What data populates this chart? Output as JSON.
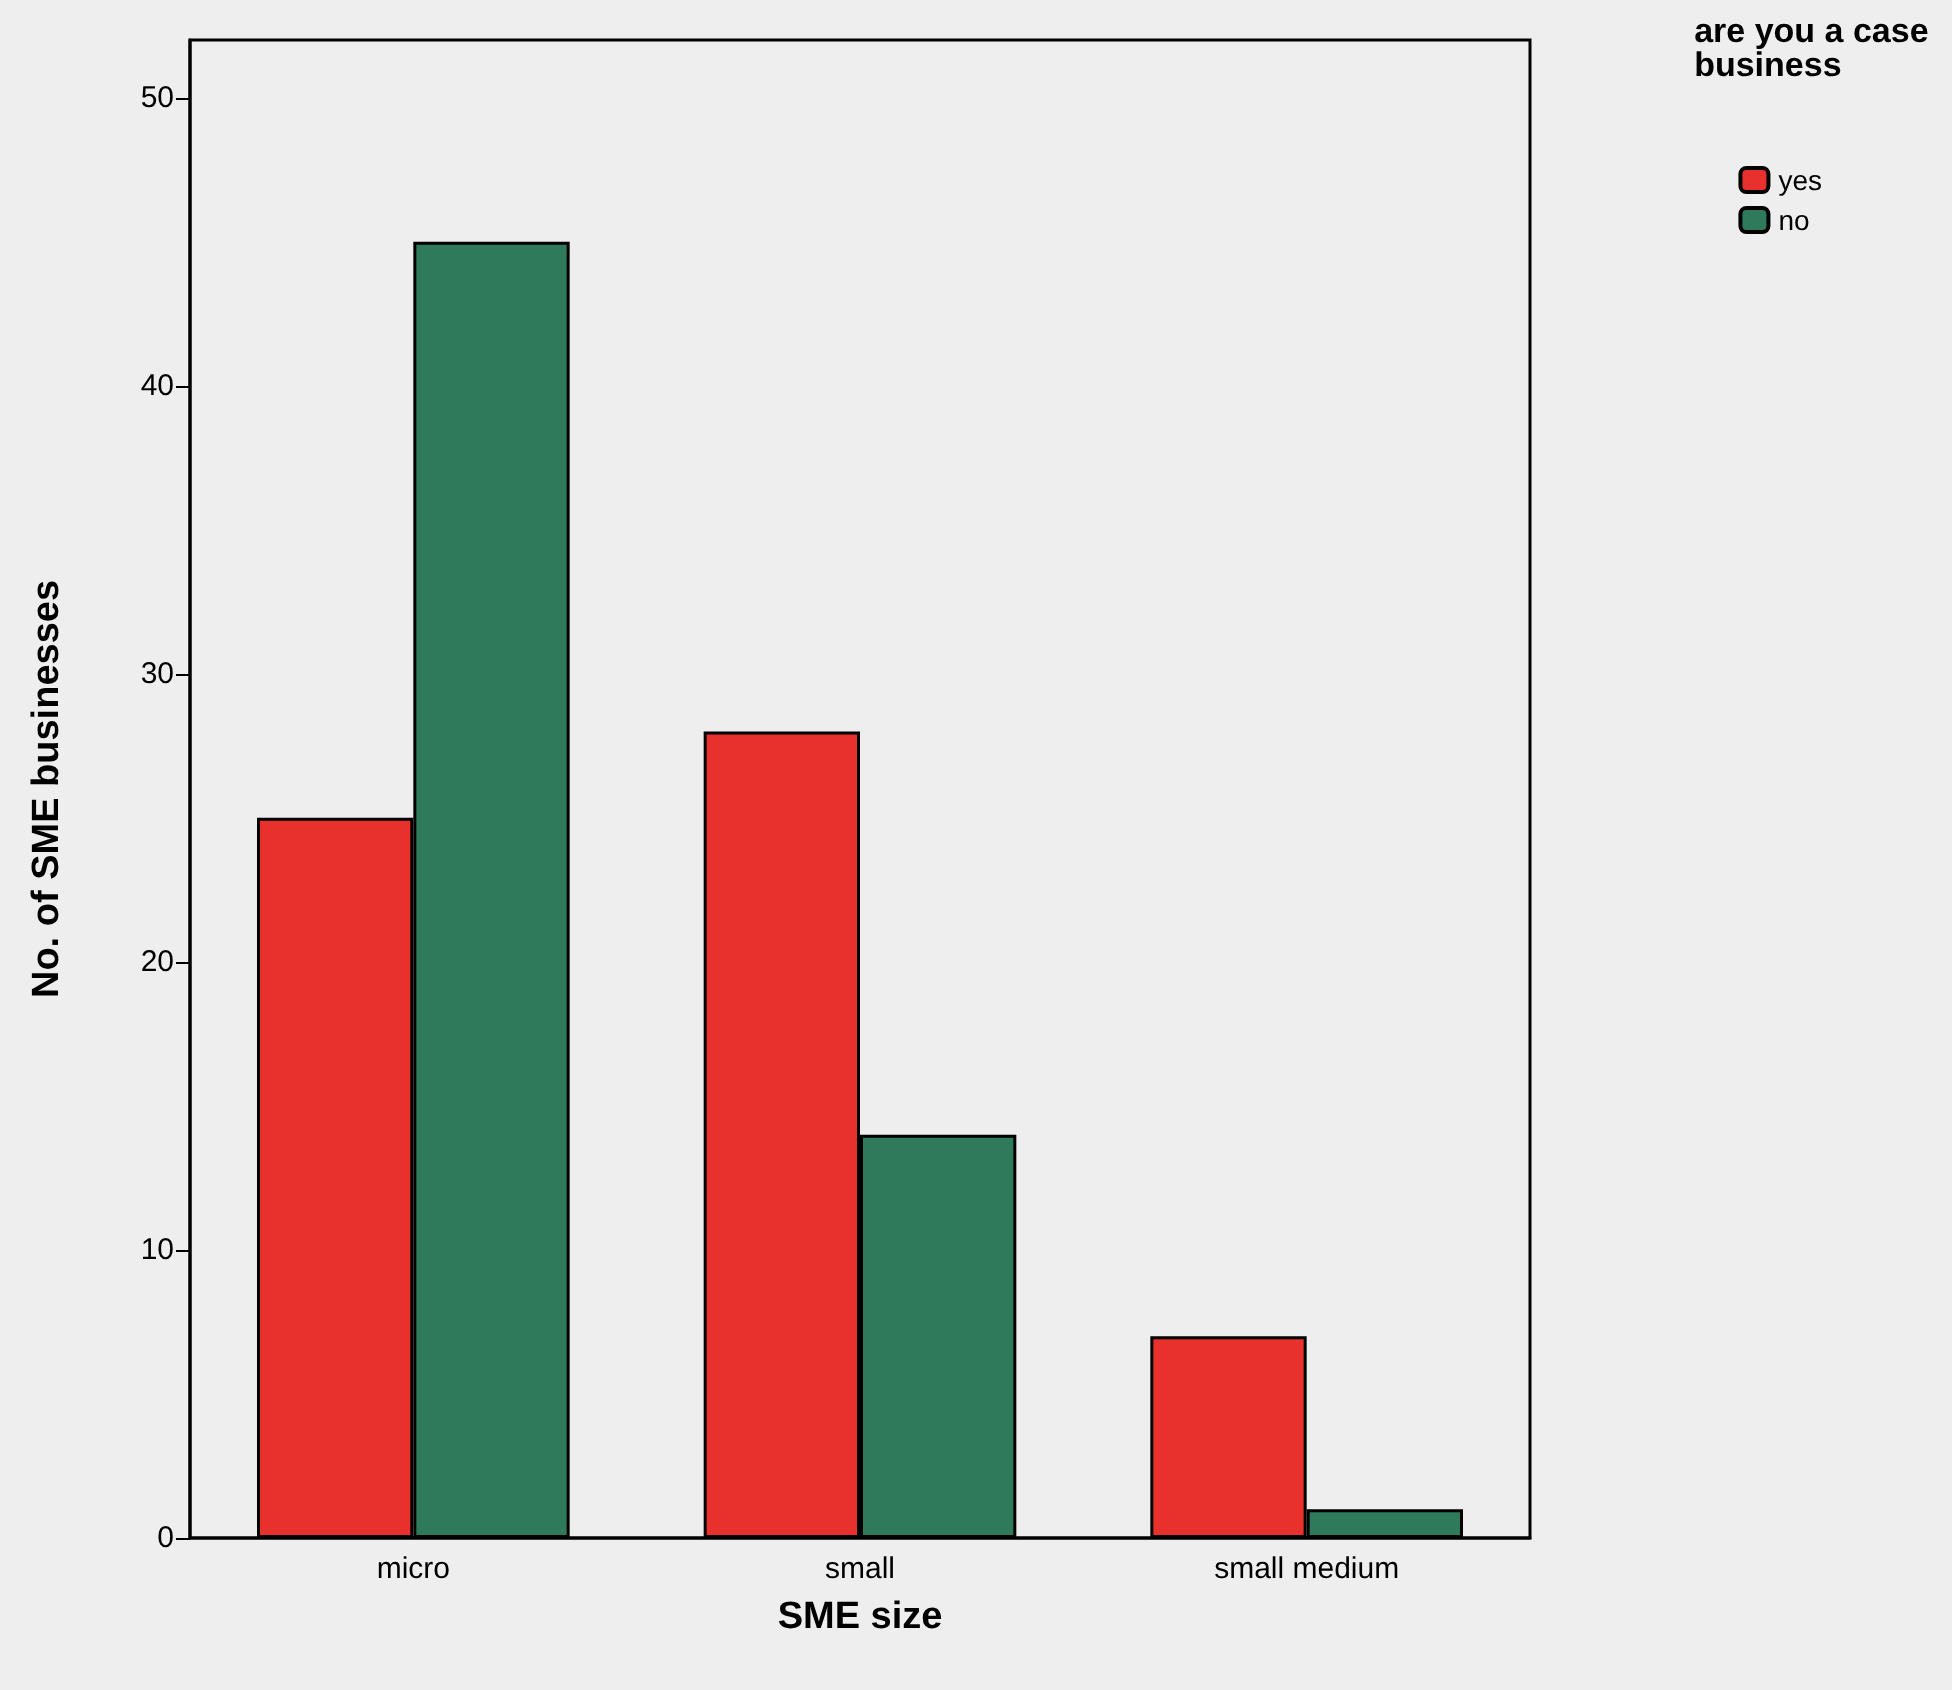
{
  "chart_data": {
    "type": "bar",
    "xlabel": "SME size",
    "ylabel": "No. of SME businesses",
    "legend_title": "are you a case business",
    "categories": [
      "micro",
      "small",
      "small medium"
    ],
    "series": [
      {
        "name": "yes",
        "color": "#e8302c",
        "values": [
          25,
          28,
          7
        ]
      },
      {
        "name": "no",
        "color": "#2f7a5a",
        "values": [
          45,
          14,
          1
        ]
      }
    ],
    "ylim": [
      0,
      52
    ],
    "yticks": [
      0,
      10,
      20,
      30,
      40,
      50
    ],
    "legend": "top right",
    "grid": false
  }
}
